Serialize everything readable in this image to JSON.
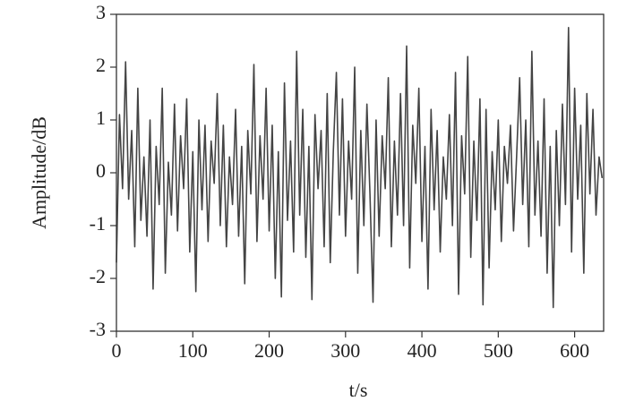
{
  "chart_data": {
    "type": "line",
    "xlabel": "t/s",
    "ylabel": "Amplitude/dB",
    "xlim": [
      0,
      638
    ],
    "ylim": [
      -3,
      3
    ],
    "xticks": [
      0,
      100,
      200,
      300,
      400,
      500,
      600
    ],
    "yticks": [
      -3,
      -2,
      -1,
      0,
      1,
      2,
      3
    ],
    "grid": false,
    "x": [
      0,
      4,
      8,
      12,
      16,
      20,
      24,
      28,
      32,
      36,
      40,
      44,
      48,
      52,
      56,
      60,
      64,
      68,
      72,
      76,
      80,
      84,
      88,
      92,
      96,
      100,
      104,
      108,
      112,
      116,
      120,
      124,
      128,
      132,
      136,
      140,
      144,
      148,
      152,
      156,
      160,
      164,
      168,
      172,
      176,
      180,
      184,
      188,
      192,
      196,
      200,
      204,
      208,
      212,
      216,
      220,
      224,
      228,
      232,
      236,
      240,
      244,
      248,
      252,
      256,
      260,
      264,
      268,
      272,
      276,
      280,
      284,
      288,
      292,
      296,
      300,
      304,
      308,
      312,
      316,
      320,
      324,
      328,
      332,
      336,
      340,
      344,
      348,
      352,
      356,
      360,
      364,
      368,
      372,
      376,
      380,
      384,
      388,
      392,
      396,
      400,
      404,
      408,
      412,
      416,
      420,
      424,
      428,
      432,
      436,
      440,
      444,
      448,
      452,
      456,
      460,
      464,
      468,
      472,
      476,
      480,
      484,
      488,
      492,
      496,
      500,
      504,
      508,
      512,
      516,
      520,
      524,
      528,
      532,
      536,
      540,
      544,
      548,
      552,
      556,
      560,
      564,
      568,
      572,
      576,
      580,
      584,
      588,
      592,
      596,
      600,
      604,
      608,
      612,
      616,
      620,
      624,
      628,
      632,
      636
    ],
    "series": [
      {
        "name": "Amplitude",
        "color": "#444444",
        "values": [
          -1.7,
          1.1,
          -0.3,
          2.1,
          -0.5,
          0.8,
          -1.4,
          1.6,
          -0.9,
          0.3,
          -1.2,
          1.0,
          -2.2,
          0.5,
          -0.6,
          1.6,
          -1.9,
          0.2,
          -0.8,
          1.3,
          -1.1,
          0.7,
          -0.3,
          1.4,
          -1.5,
          0.4,
          -2.25,
          1.0,
          -0.7,
          0.9,
          -1.3,
          0.6,
          -0.2,
          1.5,
          -1.0,
          0.9,
          -1.4,
          0.3,
          -0.6,
          1.2,
          -1.2,
          0.5,
          -2.1,
          0.8,
          -0.4,
          2.05,
          -1.3,
          0.7,
          -0.5,
          1.6,
          -1.1,
          0.9,
          -2.0,
          0.4,
          -2.35,
          1.7,
          -0.9,
          0.6,
          -1.5,
          2.3,
          -0.8,
          1.2,
          -1.6,
          0.5,
          -2.4,
          1.1,
          -0.3,
          0.8,
          -1.4,
          1.5,
          -1.7,
          0.4,
          1.9,
          -0.8,
          1.4,
          -1.2,
          0.6,
          -0.5,
          2.0,
          -1.9,
          0.8,
          -1.0,
          1.3,
          -0.4,
          -2.45,
          1.0,
          -1.2,
          0.7,
          -0.3,
          1.8,
          -1.4,
          0.6,
          -0.8,
          1.5,
          -1.0,
          2.4,
          -1.8,
          0.9,
          -0.2,
          1.6,
          -1.3,
          0.5,
          -2.2,
          1.2,
          -0.7,
          0.8,
          -1.5,
          0.3,
          -0.5,
          1.1,
          -1.0,
          1.9,
          -2.3,
          0.7,
          -0.4,
          2.2,
          -1.6,
          0.6,
          -0.9,
          1.4,
          -2.5,
          1.2,
          -1.8,
          0.4,
          -0.7,
          1.0,
          -1.3,
          0.5,
          -0.2,
          0.9,
          -1.1,
          0.3,
          1.8,
          -0.6,
          1.0,
          -1.4,
          2.3,
          -0.8,
          0.6,
          -1.2,
          1.4,
          -1.9,
          0.5,
          -2.55,
          0.8,
          -1.0,
          1.3,
          -0.6,
          2.75,
          -1.5,
          1.6,
          -0.5,
          0.9,
          -1.9,
          1.5,
          -0.4,
          1.2,
          -0.8,
          0.3,
          -0.1
        ]
      }
    ]
  }
}
